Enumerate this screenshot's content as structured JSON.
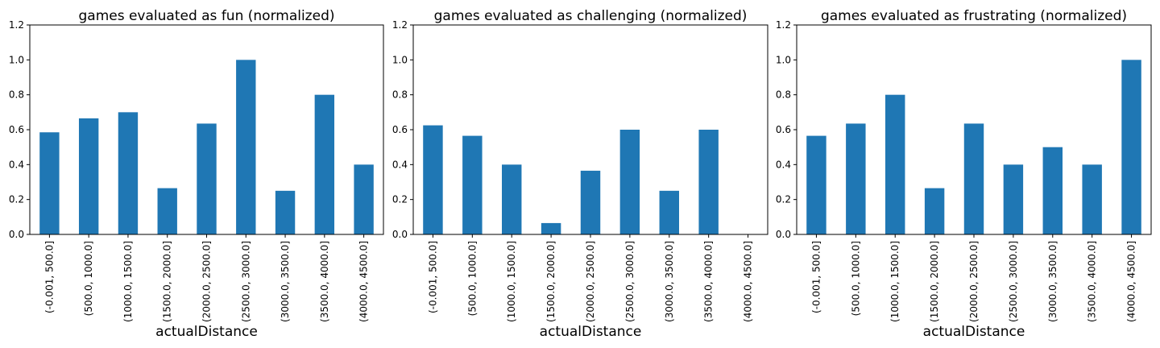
{
  "chart_data": [
    {
      "type": "bar",
      "title": "games evaluated as fun (normalized)",
      "xlabel": "actualDistance",
      "ylabel": "",
      "ylim": [
        0,
        1.2
      ],
      "yticks": [
        "0.0",
        "0.2",
        "0.4",
        "0.6",
        "0.8",
        "1.0",
        "1.2"
      ],
      "categories": [
        "(-0.001, 500.0]",
        "(500.0, 1000.0]",
        "(1000.0, 1500.0]",
        "(1500.0, 2000.0]",
        "(2000.0, 2500.0]",
        "(2500.0, 3000.0]",
        "(3000.0, 3500.0]",
        "(3500.0, 4000.0]",
        "(4000.0, 4500.0]"
      ],
      "values": [
        0.585,
        0.665,
        0.7,
        0.265,
        0.635,
        1.0,
        0.25,
        0.8,
        0.4
      ],
      "color": "#1f77b4",
      "grid": false,
      "legend": false
    },
    {
      "type": "bar",
      "title": "games evaluated as challenging (normalized)",
      "xlabel": "actualDistance",
      "ylabel": "",
      "ylim": [
        0,
        1.2
      ],
      "yticks": [
        "0.0",
        "0.2",
        "0.4",
        "0.6",
        "0.8",
        "1.0",
        "1.2"
      ],
      "categories": [
        "(-0.001, 500.0]",
        "(500.0, 1000.0]",
        "(1000.0, 1500.0]",
        "(1500.0, 2000.0]",
        "(2000.0, 2500.0]",
        "(2500.0, 3000.0]",
        "(3000.0, 3500.0]",
        "(3500.0, 4000.0]",
        "(4000.0, 4500.0]"
      ],
      "values": [
        0.625,
        0.565,
        0.4,
        0.065,
        0.365,
        0.6,
        0.25,
        0.6,
        0.0
      ],
      "color": "#1f77b4",
      "grid": false,
      "legend": false
    },
    {
      "type": "bar",
      "title": "games evaluated as frustrating (normalized)",
      "xlabel": "actualDistance",
      "ylabel": "",
      "ylim": [
        0,
        1.2
      ],
      "yticks": [
        "0.0",
        "0.2",
        "0.4",
        "0.6",
        "0.8",
        "1.0",
        "1.2"
      ],
      "categories": [
        "(-0.001, 500.0]",
        "(500.0, 1000.0]",
        "(1000.0, 1500.0]",
        "(1500.0, 2000.0]",
        "(2000.0, 2500.0]",
        "(2500.0, 3000.0]",
        "(3000.0, 3500.0]",
        "(3500.0, 4000.0]",
        "(4000.0, 4500.0]"
      ],
      "values": [
        0.565,
        0.635,
        0.8,
        0.265,
        0.635,
        0.4,
        0.5,
        0.4,
        1.0
      ],
      "color": "#1f77b4",
      "grid": false,
      "legend": false
    }
  ]
}
